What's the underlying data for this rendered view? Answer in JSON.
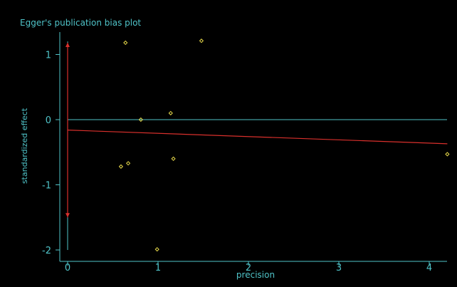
{
  "chart_data": {
    "type": "scatter",
    "title": "Egger's publication bias plot",
    "xlabel": "precision",
    "ylabel": "standardized effect",
    "xlim": [
      -0.1,
      4.2
    ],
    "ylim": [
      -2.1,
      1.35
    ],
    "xticks": [
      0,
      1,
      2,
      3,
      4
    ],
    "yticks": [
      -2,
      -1,
      0,
      1
    ],
    "grid": false,
    "points": [
      {
        "x": 0.64,
        "y": 1.18
      },
      {
        "x": 1.48,
        "y": 1.21
      },
      {
        "x": 1.14,
        "y": 0.1
      },
      {
        "x": 0.81,
        "y": 0.0
      },
      {
        "x": 1.17,
        "y": -0.6
      },
      {
        "x": 0.59,
        "y": -0.72
      },
      {
        "x": 0.67,
        "y": -0.67
      },
      {
        "x": 0.99,
        "y": -1.99
      },
      {
        "x": 4.2,
        "y": -0.53
      }
    ],
    "reference_line": {
      "y": 0
    },
    "regression_line": {
      "x0": 0,
      "y0": -0.16,
      "x1": 4.2,
      "y1": -0.37
    },
    "intercept_ci": {
      "x": 0,
      "low": -1.5,
      "high": 1.18
    },
    "y_axis_extent": {
      "low": -2.0,
      "high": 1.2
    },
    "colors": {
      "background": "#000000",
      "axis": "#4fc3c8",
      "text": "#4fc3c8",
      "points": "#e6d84a",
      "regression": "#d9302c",
      "reference": "#4fc3c8"
    }
  }
}
